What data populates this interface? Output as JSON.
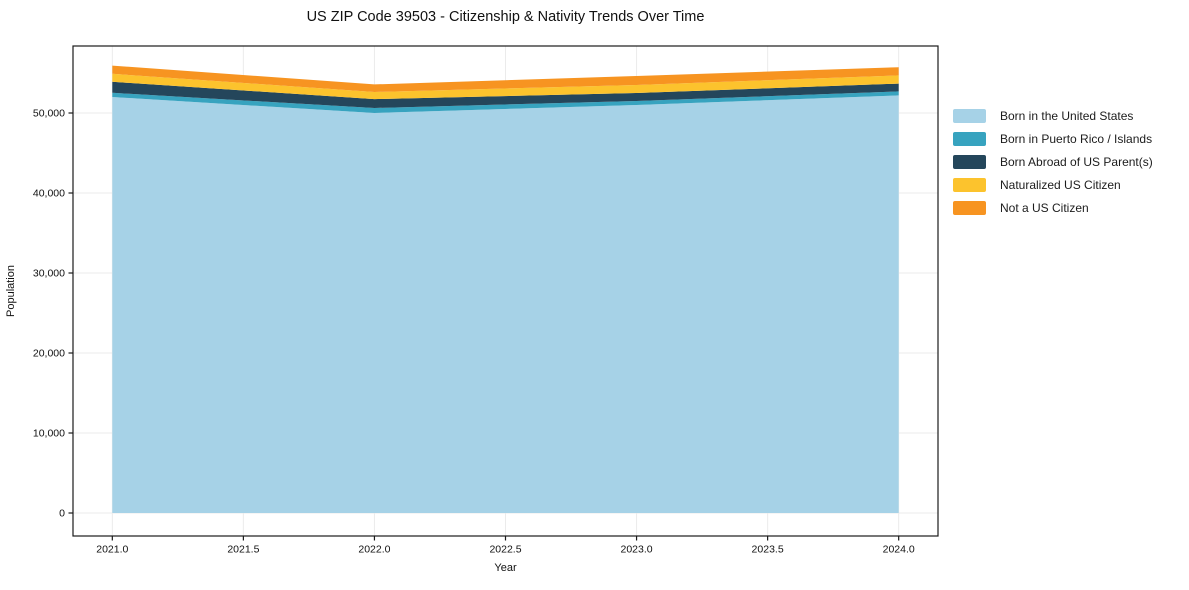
{
  "page": {
    "background": "#ffffff"
  },
  "chart_data": {
    "type": "area",
    "stacked": true,
    "title": "US ZIP Code 39503 - Citizenship & Nativity Trends Over Time",
    "xlabel": "Year",
    "ylabel": "Population",
    "x": [
      2021,
      2022,
      2023,
      2024
    ],
    "series": [
      {
        "name": "Born in the United States",
        "color": "#A6D2E7",
        "values": [
          52000,
          50000,
          51000,
          52200
        ]
      },
      {
        "name": "Born in Puerto Rico / Islands",
        "color": "#37A3BF",
        "values": [
          520,
          620,
          500,
          500
        ]
      },
      {
        "name": "Born Abroad of US Parent(s)",
        "color": "#24465B",
        "values": [
          1380,
          1120,
          1000,
          980
        ]
      },
      {
        "name": "Naturalized US Citizen",
        "color": "#FCC32D",
        "values": [
          1000,
          880,
          1000,
          1020
        ]
      },
      {
        "name": "Not a US Citizen",
        "color": "#F79421",
        "values": [
          1030,
          950,
          1120,
          1020
        ]
      }
    ],
    "xlim": [
      2020.85,
      2024.15
    ],
    "ylim": [
      -2875,
      58375
    ],
    "xticks": [
      2021.0,
      2021.5,
      2022.0,
      2022.5,
      2023.0,
      2023.5,
      2024.0
    ],
    "xtick_labels": [
      "2021.0",
      "2021.5",
      "2022.0",
      "2022.5",
      "2023.0",
      "2023.5",
      "2024.0"
    ],
    "yticks": [
      0,
      10000,
      20000,
      30000,
      40000,
      50000
    ],
    "ytick_labels": [
      "0",
      "10,000",
      "20,000",
      "30,000",
      "40,000",
      "50,000"
    ],
    "grid": true,
    "grid_color": "#EBEBEB",
    "axis_color": "#1A1A1A",
    "legend_position": "right-outside"
  }
}
